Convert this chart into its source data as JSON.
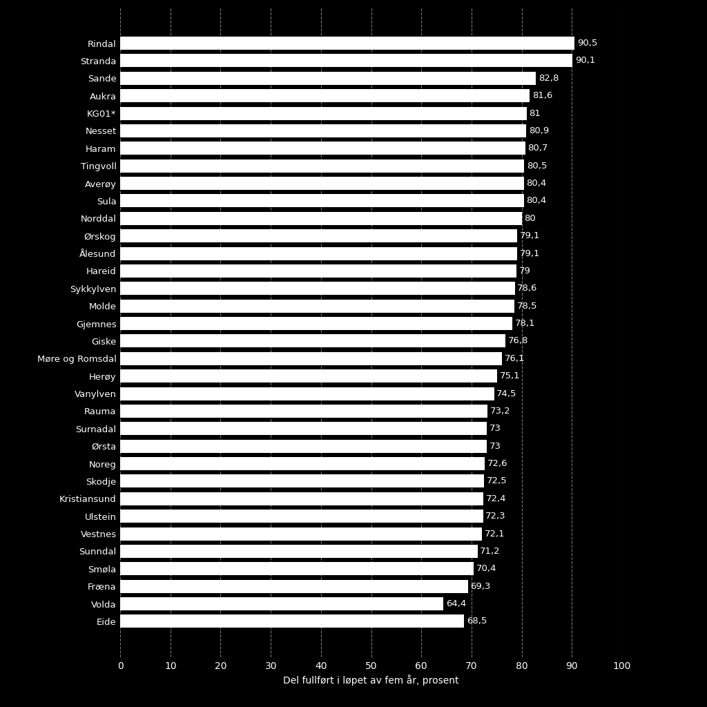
{
  "categories": [
    "Rindal",
    "Stranda",
    "Sande",
    "Aukra",
    "KG01*",
    "Nesset",
    "Haram",
    "Tingvoll",
    "Averøy",
    "Sula",
    "Norddal",
    "Ørskog",
    "Ålesund",
    "Hareid",
    "Sykkylven",
    "Molde",
    "Gjemnes",
    "Giske",
    "Møre og Romsdal",
    "Herøy",
    "Vanylven",
    "Rauma",
    "Surnadal",
    "Ørsta",
    "Noreg",
    "Skodje",
    "Kristiansund",
    "Ulstein",
    "Vestnes",
    "Sunndal",
    "Smøla",
    "Fræna",
    "Volda",
    "Eide"
  ],
  "values": [
    90.5,
    90.1,
    82.8,
    81.6,
    81.0,
    80.9,
    80.7,
    80.5,
    80.4,
    80.4,
    80.0,
    79.1,
    79.1,
    79.0,
    78.6,
    78.5,
    78.1,
    76.8,
    76.1,
    75.1,
    74.5,
    73.2,
    73.0,
    73.0,
    72.6,
    72.5,
    72.4,
    72.3,
    72.1,
    71.2,
    70.4,
    69.3,
    64.4,
    68.5
  ],
  "value_labels": [
    "90,5",
    "90,1",
    "82,8",
    "81,6",
    "81",
    "80,9",
    "80,7",
    "80,5",
    "80,4",
    "80,4",
    "80",
    "79,1",
    "79,1",
    "79",
    "78,6",
    "78,5",
    "78,1",
    "76,8",
    "76,1",
    "75,1",
    "74,5",
    "73,2",
    "73",
    "73",
    "72,6",
    "72,5",
    "72,4",
    "72,3",
    "72,1",
    "71,2",
    "70,4",
    "69,3",
    "64,4",
    "68,5"
  ],
  "bar_color": "#ffffff",
  "background_color": "#000000",
  "text_color": "#ffffff",
  "xlabel": "Del fullført i løpet av fem år, prosent",
  "xlim": [
    0,
    100
  ],
  "xticks": [
    0,
    10,
    20,
    30,
    40,
    50,
    60,
    70,
    80,
    90,
    100
  ],
  "grid_color": "#777777",
  "bar_height": 0.75,
  "label_fontsize": 9.5,
  "tick_fontsize": 10,
  "xlabel_fontsize": 10
}
